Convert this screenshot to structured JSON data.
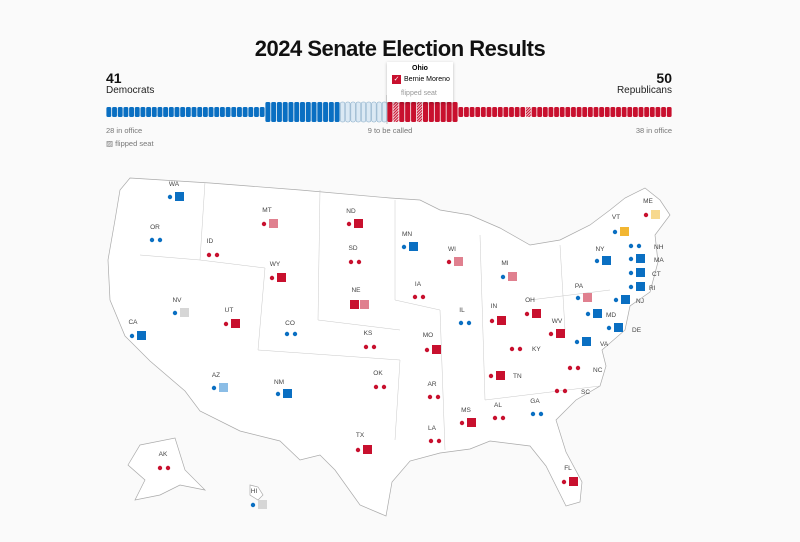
{
  "title": "2024 Senate Election Results",
  "dem": {
    "count": "41",
    "label": "Democrats",
    "in_office": "28 in office"
  },
  "rep": {
    "count": "50",
    "label": "Republicans",
    "in_office": "38 in office"
  },
  "to_be_called": "9 to be called",
  "legend_flipped": "flipped seat",
  "seat_bar": {
    "dem_in_office": 28,
    "dem_won": 13,
    "uncalled": 9,
    "rep_won": 12,
    "rep_won_flipped_indices": [
      1,
      5
    ],
    "rep_in_office": 38,
    "rep_in_office_flipped_indices": [
      12
    ]
  },
  "tooltip": {
    "state": "Ohio",
    "winner": "Bernie Moreno",
    "note": "flipped seat"
  },
  "colors": {
    "dem": "#0a6fc2",
    "rep": "#c8102e",
    "dem_flip": "#8bbde6",
    "rep_flip": "#e0808f",
    "independent": "#f2b632",
    "independent_lean": "#f7d98f",
    "uncalled": "#d6d6d6",
    "bar_uncalled": "#dbe9f4"
  },
  "legend_markers": {
    "dot": "seat not up / held",
    "square": "seat contested in 2024"
  },
  "states": [
    {
      "abbr": "WA",
      "m": [
        "d",
        "D"
      ]
    },
    {
      "abbr": "OR",
      "m": [
        "d",
        "d"
      ]
    },
    {
      "abbr": "ID",
      "m": [
        "r",
        "r"
      ]
    },
    {
      "abbr": "MT",
      "m": [
        "r",
        "Rf"
      ]
    },
    {
      "abbr": "ND",
      "m": [
        "r",
        "R"
      ]
    },
    {
      "abbr": "SD",
      "m": [
        "r",
        "r"
      ]
    },
    {
      "abbr": "WY",
      "m": [
        "r",
        "R"
      ]
    },
    {
      "abbr": "NE",
      "m": [
        "R",
        "Rf"
      ]
    },
    {
      "abbr": "IA",
      "m": [
        "r",
        "r"
      ]
    },
    {
      "abbr": "MN",
      "m": [
        "d",
        "D"
      ]
    },
    {
      "abbr": "WI",
      "m": [
        "r",
        "Rf"
      ]
    },
    {
      "abbr": "MI",
      "m": [
        "d",
        "Rf"
      ]
    },
    {
      "abbr": "IL",
      "m": [
        "d",
        "d"
      ]
    },
    {
      "abbr": "IN",
      "m": [
        "r",
        "R"
      ]
    },
    {
      "abbr": "OH",
      "m": [
        "r",
        "R"
      ]
    },
    {
      "abbr": "PA",
      "m": [
        "d",
        "Rf"
      ]
    },
    {
      "abbr": "NY",
      "m": [
        "d",
        "D"
      ]
    },
    {
      "abbr": "VT",
      "m": [
        "d",
        "I"
      ]
    },
    {
      "abbr": "ME",
      "m": [
        "r",
        "Il"
      ]
    },
    {
      "abbr": "NH",
      "m": [
        "d",
        "d"
      ]
    },
    {
      "abbr": "MA",
      "m": [
        "d",
        "D"
      ]
    },
    {
      "abbr": "CT",
      "m": [
        "d",
        "D"
      ]
    },
    {
      "abbr": "RI",
      "m": [
        "d",
        "D"
      ]
    },
    {
      "abbr": "NJ",
      "m": [
        "d",
        "D"
      ]
    },
    {
      "abbr": "MD",
      "m": [
        "d",
        "D"
      ]
    },
    {
      "abbr": "DE",
      "m": [
        "d",
        "D"
      ]
    },
    {
      "abbr": "VA",
      "m": [
        "d",
        "D"
      ]
    },
    {
      "abbr": "WV",
      "m": [
        "r",
        "R"
      ]
    },
    {
      "abbr": "KY",
      "m": [
        "r",
        "r"
      ]
    },
    {
      "abbr": "MO",
      "m": [
        "r",
        "R"
      ]
    },
    {
      "abbr": "KS",
      "m": [
        "r",
        "r"
      ]
    },
    {
      "abbr": "CO",
      "m": [
        "d",
        "d"
      ]
    },
    {
      "abbr": "UT",
      "m": [
        "r",
        "R"
      ]
    },
    {
      "abbr": "NV",
      "m": [
        "d",
        "G"
      ]
    },
    {
      "abbr": "CA",
      "m": [
        "d",
        "D"
      ]
    },
    {
      "abbr": "AZ",
      "m": [
        "d",
        "Dl"
      ]
    },
    {
      "abbr": "NM",
      "m": [
        "d",
        "D"
      ]
    },
    {
      "abbr": "OK",
      "m": [
        "r",
        "r"
      ]
    },
    {
      "abbr": "AR",
      "m": [
        "r",
        "r"
      ]
    },
    {
      "abbr": "TN",
      "m": [
        "r",
        "R"
      ]
    },
    {
      "abbr": "NC",
      "m": [
        "r",
        "r"
      ]
    },
    {
      "abbr": "SC",
      "m": [
        "r",
        "r"
      ]
    },
    {
      "abbr": "GA",
      "m": [
        "d",
        "d"
      ]
    },
    {
      "abbr": "AL",
      "m": [
        "r",
        "r"
      ]
    },
    {
      "abbr": "MS",
      "m": [
        "r",
        "R"
      ]
    },
    {
      "abbr": "LA",
      "m": [
        "r",
        "r"
      ]
    },
    {
      "abbr": "TX",
      "m": [
        "r",
        "R"
      ]
    },
    {
      "abbr": "FL",
      "m": [
        "r",
        "R"
      ]
    },
    {
      "abbr": "AK",
      "m": [
        "r",
        "r"
      ]
    },
    {
      "abbr": "HI",
      "m": [
        "d",
        "G"
      ]
    }
  ]
}
